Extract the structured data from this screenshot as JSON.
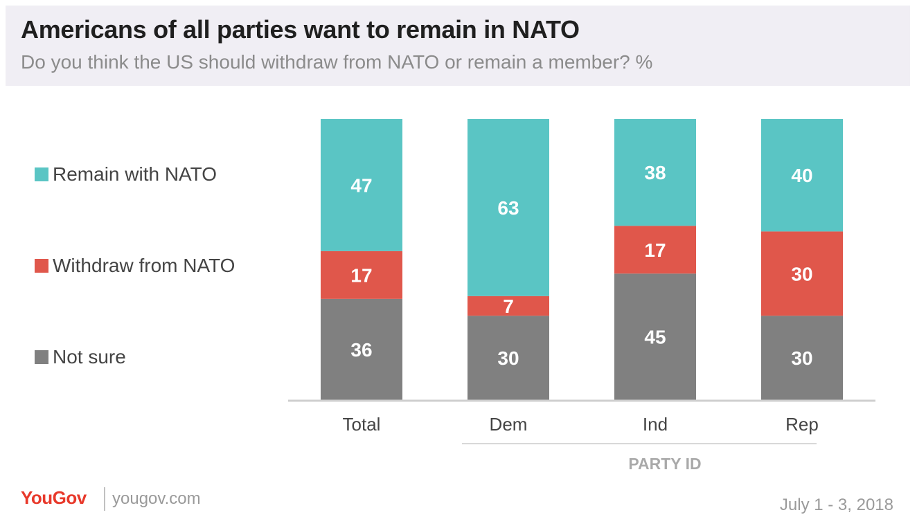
{
  "header": {
    "title": "Americans of all parties want to remain in NATO",
    "subtitle": "Do you think the US should withdraw from NATO or remain a member? %"
  },
  "legend": {
    "items": [
      {
        "label": "Remain with NATO",
        "color": "#5ac5c4"
      },
      {
        "label": "Withdraw from NATO",
        "color": "#e0574b"
      },
      {
        "label": "Not sure",
        "color": "#808080"
      }
    ]
  },
  "chart_data": {
    "type": "bar",
    "stacked": true,
    "categories": [
      "Total",
      "Dem",
      "Ind",
      "Rep"
    ],
    "series": [
      {
        "name": "Not sure",
        "values": [
          36,
          30,
          45,
          30
        ],
        "color": "#808080"
      },
      {
        "name": "Withdraw from NATO",
        "values": [
          17,
          7,
          17,
          30
        ],
        "color": "#e0574b"
      },
      {
        "name": "Remain with NATO",
        "values": [
          47,
          63,
          38,
          40
        ],
        "color": "#5ac5c4"
      }
    ],
    "group_label": "PARTY ID",
    "group_categories": [
      "Dem",
      "Ind",
      "Rep"
    ],
    "grid": false,
    "legend_position": "left"
  },
  "footer": {
    "brand": "YouGov",
    "url": "yougov.com",
    "date": "July 1 - 3, 2018"
  }
}
